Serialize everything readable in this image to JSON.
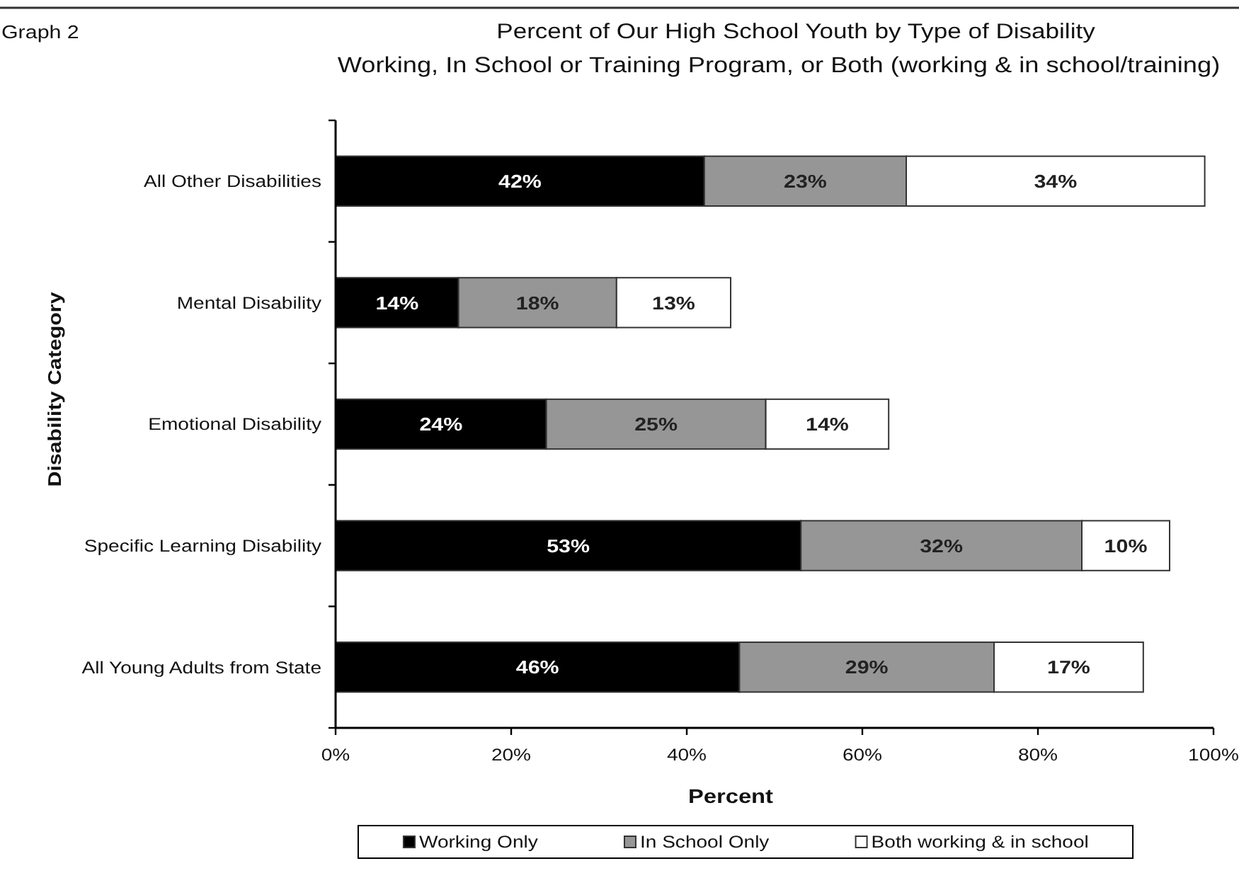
{
  "chart_data": {
    "type": "bar",
    "orientation": "horizontal",
    "stacked": true,
    "title": "Percent of Our High School Youth by Type of Disability",
    "subtitle": "Working, In School or Training Program, or Both (working & in school/training)",
    "xlabel": "Percent",
    "ylabel": "Disability Category",
    "annotations": [
      "Graph 2"
    ],
    "categories": [
      "All Other Disabilities",
      "Mental Disability",
      "Emotional Disability",
      "Specific Learning Disability",
      "All Young Adults from State"
    ],
    "series": [
      {
        "name": "Working Only",
        "color": "#000000",
        "values": [
          42,
          14,
          24,
          53,
          46
        ],
        "value_labels": [
          "42%",
          "14%",
          "24%",
          "53%",
          "46%"
        ]
      },
      {
        "name": "In School Only",
        "color": "#969696",
        "values": [
          23,
          18,
          25,
          32,
          29
        ],
        "value_labels": [
          "23%",
          "18%",
          "25%",
          "32%",
          "29%"
        ]
      },
      {
        "name": "Both working & in school",
        "color": "#ffffff",
        "values": [
          34,
          13,
          14,
          10,
          17
        ],
        "value_labels": [
          "34%",
          "13%",
          "14%",
          "10%",
          "17%"
        ]
      }
    ],
    "xlim": [
      0,
      100
    ],
    "xticks": [
      {
        "value": 0,
        "label": "0%"
      },
      {
        "value": 20,
        "label": "20%"
      },
      {
        "value": 40,
        "label": "40%"
      },
      {
        "value": 60,
        "label": "60%"
      },
      {
        "value": 80,
        "label": "80%"
      },
      {
        "value": 100,
        "label": "100%"
      }
    ],
    "legend": "bottom"
  }
}
